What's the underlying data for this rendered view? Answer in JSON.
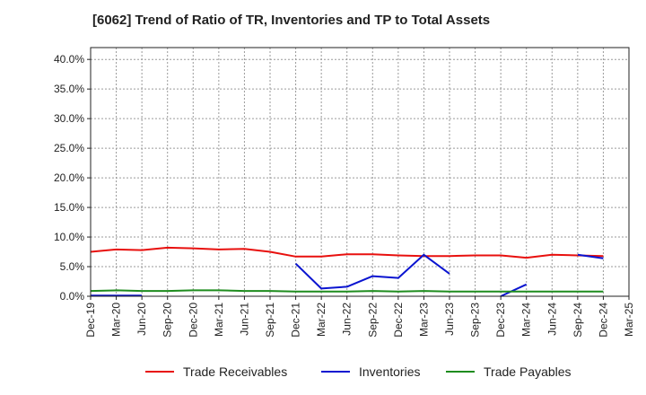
{
  "chart_data": {
    "type": "line",
    "title": "[6062]  Trend of Ratio of TR, Inventories and TP to Total Assets",
    "xlabel": "",
    "ylabel": "",
    "ylim": [
      0,
      42
    ],
    "yticks": [
      0,
      5,
      10,
      15,
      20,
      25,
      30,
      35,
      40
    ],
    "ytick_labels": [
      "0.0%",
      "5.0%",
      "10.0%",
      "15.0%",
      "20.0%",
      "25.0%",
      "30.0%",
      "35.0%",
      "40.0%"
    ],
    "categories": [
      "Dec-19",
      "Mar-20",
      "Jun-20",
      "Sep-20",
      "Dec-20",
      "Mar-21",
      "Jun-21",
      "Sep-21",
      "Dec-21",
      "Mar-22",
      "Jun-22",
      "Sep-22",
      "Dec-22",
      "Mar-23",
      "Jun-23",
      "Sep-23",
      "Dec-23",
      "Mar-24",
      "Jun-24",
      "Sep-24",
      "Dec-24",
      "Mar-25"
    ],
    "grid": true,
    "legend_position": "bottom",
    "series": [
      {
        "name": "Trade Receivables",
        "color": "#e8100e",
        "values": [
          7.5,
          7.9,
          7.8,
          8.2,
          8.1,
          7.9,
          8.0,
          7.5,
          6.7,
          6.7,
          7.1,
          7.1,
          6.9,
          6.8,
          6.8,
          6.9,
          6.9,
          6.5,
          7.0,
          6.9,
          6.8,
          null
        ]
      },
      {
        "name": "Inventories",
        "color": "#0a14d0",
        "values": [
          0.1,
          0.1,
          0.1,
          null,
          null,
          null,
          null,
          null,
          5.5,
          1.3,
          1.6,
          3.4,
          3.1,
          7.0,
          3.8,
          null,
          0.0,
          2.0,
          null,
          7.0,
          6.4,
          null
        ]
      },
      {
        "name": "Trade Payables",
        "color": "#1e8c1e",
        "values": [
          0.9,
          1.0,
          0.9,
          0.9,
          1.0,
          1.0,
          0.9,
          0.9,
          0.8,
          0.8,
          0.8,
          0.9,
          0.8,
          0.9,
          0.8,
          0.8,
          0.8,
          0.8,
          0.8,
          0.8,
          0.8,
          null
        ]
      }
    ]
  }
}
